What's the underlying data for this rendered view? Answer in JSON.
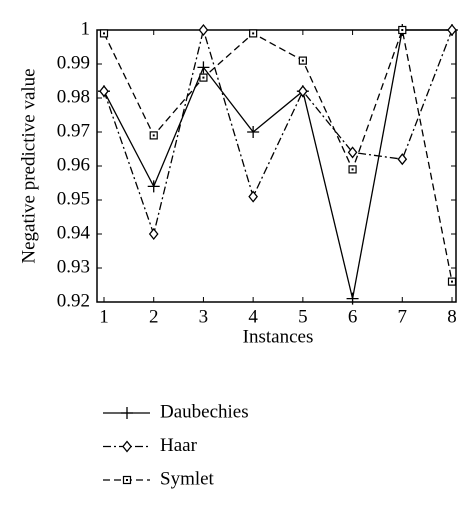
{
  "chart_data": {
    "type": "line",
    "x": [
      1,
      2,
      3,
      4,
      5,
      6,
      7,
      8
    ],
    "xlabel": "Instances",
    "ylabel": "Negative predictive value",
    "xlim": [
      1,
      8
    ],
    "xticks": [
      1,
      2,
      3,
      4,
      5,
      6,
      7,
      8
    ],
    "ylim": [
      0.92,
      1
    ],
    "yticks": [
      0.92,
      0.93,
      0.94,
      0.95,
      0.96,
      0.97,
      0.98,
      0.99,
      1
    ],
    "series": [
      {
        "name": "Daubechies",
        "color": "#000000",
        "marker": "plus",
        "dash": "solid",
        "values": [
          0.982,
          0.954,
          0.989,
          0.97,
          0.982,
          0.921,
          1.0,
          1.0
        ]
      },
      {
        "name": "Haar",
        "color": "#000000",
        "marker": "diamond",
        "dash": "dashdot",
        "values": [
          0.982,
          0.94,
          1.0,
          0.951,
          0.982,
          0.964,
          0.962,
          1.0
        ]
      },
      {
        "name": "Symlet",
        "color": "#000000",
        "marker": "square",
        "dash": "dashed",
        "values": [
          0.999,
          0.969,
          0.986,
          0.999,
          0.991,
          0.959,
          1.0,
          0.926
        ]
      }
    ]
  }
}
